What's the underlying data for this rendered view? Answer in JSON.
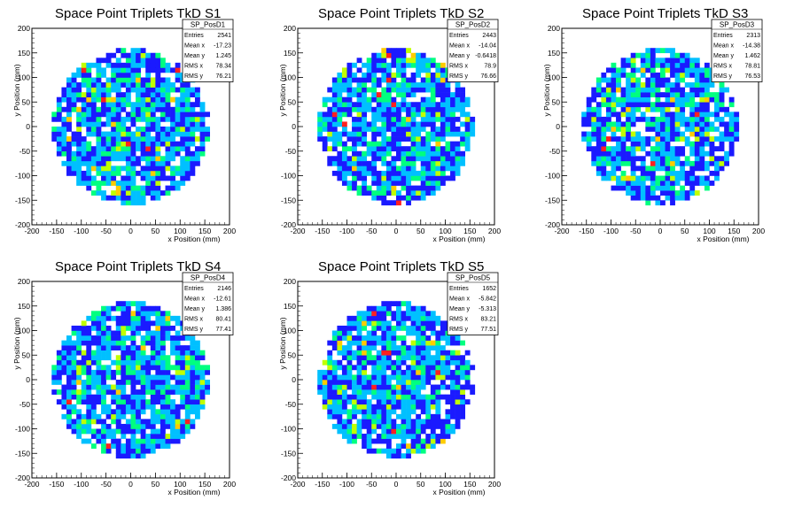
{
  "colors": {
    "palette_low_to_high": [
      "#1a1aff",
      "#00c0ff",
      "#00ff80",
      "#c0ff00",
      "#ffcc00",
      "#ff2020"
    ],
    "frame": "#000000",
    "background": "#ffffff"
  },
  "chart_data": [
    {
      "type": "heatmap",
      "title": "Space Point Triplets TkD S1",
      "xlabel": "x Position (mm)",
      "ylabel": "y Position (mm)",
      "xlim": [
        -200,
        200
      ],
      "ylim": [
        -200,
        200
      ],
      "xticks": [
        "-200",
        "-150",
        "-100",
        "-50",
        "0",
        "50",
        "100",
        "150",
        "200"
      ],
      "yticks": [
        "-200",
        "-150",
        "-100",
        "-50",
        "0",
        "50",
        "100",
        "150",
        "200"
      ],
      "distribution": {
        "shape": "disc",
        "radius": 160,
        "bin_size": 10,
        "max_bin_count": 6,
        "seed": 11
      },
      "stats": {
        "name": "SP_PosD1",
        "rows": [
          {
            "label": "Entries",
            "value": "2541"
          },
          {
            "label": "Mean x",
            "value": "-17.23"
          },
          {
            "label": "Mean y",
            "value": "1.245"
          },
          {
            "label": "RMS x",
            "value": "78.34"
          },
          {
            "label": "RMS y",
            "value": "76.21"
          }
        ]
      }
    },
    {
      "type": "heatmap",
      "title": "Space Point Triplets TkD S2",
      "xlabel": "x Position (mm)",
      "ylabel": "y Position (mm)",
      "xlim": [
        -200,
        200
      ],
      "ylim": [
        -200,
        200
      ],
      "xticks": [
        "-200",
        "-150",
        "-100",
        "-50",
        "0",
        "50",
        "100",
        "150",
        "200"
      ],
      "yticks": [
        "-200",
        "-150",
        "-100",
        "-50",
        "0",
        "50",
        "100",
        "150",
        "200"
      ],
      "distribution": {
        "shape": "disc",
        "radius": 160,
        "bin_size": 10,
        "max_bin_count": 6,
        "seed": 23
      },
      "stats": {
        "name": "SP_PosD2",
        "rows": [
          {
            "label": "Entries",
            "value": "2443"
          },
          {
            "label": "Mean x",
            "value": "-14.04"
          },
          {
            "label": "Mean y",
            "value": "-0.6418"
          },
          {
            "label": "RMS x",
            "value": "78.9"
          },
          {
            "label": "RMS y",
            "value": "76.66"
          }
        ]
      }
    },
    {
      "type": "heatmap",
      "title": "Space Point Triplets TkD S3",
      "xlabel": "x Position (mm)",
      "ylabel": "y Position (mm)",
      "xlim": [
        -200,
        200
      ],
      "ylim": [
        -200,
        200
      ],
      "xticks": [
        "-200",
        "-150",
        "-100",
        "-50",
        "0",
        "50",
        "100",
        "150",
        "200"
      ],
      "yticks": [
        "-200",
        "-150",
        "-100",
        "-50",
        "0",
        "50",
        "100",
        "150",
        "200"
      ],
      "distribution": {
        "shape": "disc",
        "radius": 160,
        "bin_size": 10,
        "max_bin_count": 6,
        "seed": 37
      },
      "stats": {
        "name": "SP_PosD3",
        "rows": [
          {
            "label": "Entries",
            "value": "2313"
          },
          {
            "label": "Mean x",
            "value": "-14.38"
          },
          {
            "label": "Mean y",
            "value": "1.462"
          },
          {
            "label": "RMS x",
            "value": "78.81"
          },
          {
            "label": "RMS y",
            "value": "76.53"
          }
        ]
      }
    },
    {
      "type": "heatmap",
      "title": "Space Point Triplets TkD S4",
      "xlabel": "x Position (mm)",
      "ylabel": "y Position (mm)",
      "xlim": [
        -200,
        200
      ],
      "ylim": [
        -200,
        200
      ],
      "xticks": [
        "-200",
        "-150",
        "-100",
        "-50",
        "0",
        "50",
        "100",
        "150",
        "200"
      ],
      "yticks": [
        "-200",
        "-150",
        "-100",
        "-50",
        "0",
        "50",
        "100",
        "150",
        "200"
      ],
      "distribution": {
        "shape": "disc",
        "radius": 160,
        "bin_size": 10,
        "max_bin_count": 6,
        "seed": 53
      },
      "stats": {
        "name": "SP_PosD4",
        "rows": [
          {
            "label": "Entries",
            "value": "2146"
          },
          {
            "label": "Mean x",
            "value": "-12.61"
          },
          {
            "label": "Mean y",
            "value": "1.386"
          },
          {
            "label": "RMS x",
            "value": "80.41"
          },
          {
            "label": "RMS y",
            "value": "77.41"
          }
        ]
      }
    },
    {
      "type": "heatmap",
      "title": "Space Point Triplets TkD S5",
      "xlabel": "x Position (mm)",
      "ylabel": "y Position (mm)",
      "xlim": [
        -200,
        200
      ],
      "ylim": [
        -200,
        200
      ],
      "xticks": [
        "-200",
        "-150",
        "-100",
        "-50",
        "0",
        "50",
        "100",
        "150",
        "200"
      ],
      "yticks": [
        "-200",
        "-150",
        "-100",
        "-50",
        "0",
        "50",
        "100",
        "150",
        "200"
      ],
      "distribution": {
        "shape": "disc",
        "radius": 160,
        "bin_size": 10,
        "max_bin_count": 6,
        "seed": 71
      },
      "stats": {
        "name": "SP_PosD5",
        "rows": [
          {
            "label": "Entries",
            "value": "1652"
          },
          {
            "label": "Mean x",
            "value": "-5.842"
          },
          {
            "label": "Mean y",
            "value": "-5.313"
          },
          {
            "label": "RMS x",
            "value": "83.21"
          },
          {
            "label": "RMS y",
            "value": "77.51"
          }
        ]
      }
    }
  ]
}
